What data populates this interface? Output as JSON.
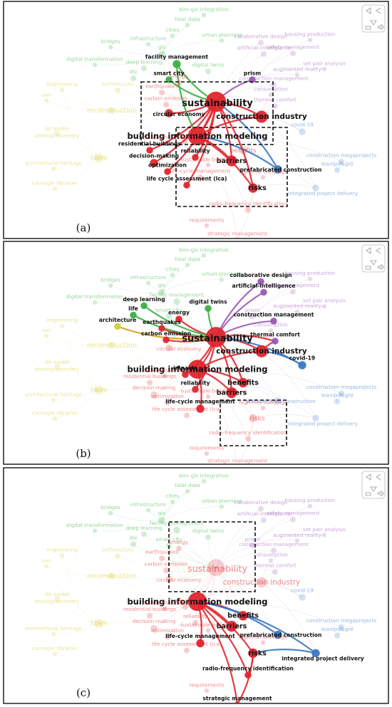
{
  "figure": {
    "panels": [
      {
        "letter": "(a)",
        "highlight": [
          "sustainability",
          "construction industry",
          "circular economy",
          "building information modeling",
          "facility management",
          "smart city",
          "prism",
          "residential buildings",
          "reliability",
          "barriers",
          "decision-making",
          "optimization",
          "life cycle assessment (lca)",
          "risks",
          "prefabricated construction"
        ],
        "edge_colors": {
          "facility management": "#3cb043",
          "smart city": "#3cb043",
          "prism": "#9b59b6",
          "prefabricated construction": "#3a78c4"
        }
      },
      {
        "letter": "(b)",
        "highlight": [
          "sustainability",
          "construction industry",
          "building information modeling",
          "collaborative design",
          "artificial-intelligence",
          "deep learning",
          "life",
          "architecture",
          "digital twins",
          "energy",
          "construction management",
          "thermal comfort",
          "earthquakes",
          "carbon emission",
          "impacts",
          "reliability",
          "barriers",
          "benefits",
          "covid-19",
          "life-cycle management"
        ],
        "edge_colors": {
          "collaborative design": "#9b59b6",
          "artificial-intelligence": "#9b59b6",
          "construction management": "#9b59b6",
          "deep learning": "#3cb043",
          "life": "#3cb043",
          "architecture": "#d4a017",
          "digital twins": "#3cb043",
          "covid-19": "#3a78c4"
        }
      },
      {
        "letter": "(c)",
        "highlight": [
          "building information modeling",
          "benefits",
          "barriers",
          "prefabricated construction",
          "life-cycle management",
          "risks",
          "integrated project delivery",
          "radio-frequency identification",
          "strategic management"
        ],
        "edge_colors": {
          "integrated project delivery": "#3a78c4",
          "prefabricated construction": "#3a78c4"
        }
      }
    ]
  },
  "nodes": [
    {
      "id": "sustainability",
      "label": "sustainability",
      "cluster": "red",
      "size": 15
    },
    {
      "id": "construction industry",
      "label": "construction industry",
      "cluster": "red",
      "size": 9
    },
    {
      "id": "building information modeling",
      "label": "building information modeling",
      "cluster": "red",
      "size": 14
    },
    {
      "id": "circular economy",
      "label": "circular economy",
      "cluster": "red",
      "size": 6
    },
    {
      "id": "barriers",
      "label": "barriers",
      "cluster": "red",
      "size": 8
    },
    {
      "id": "benefits",
      "label": "benefits",
      "cluster": "red",
      "size": 7
    },
    {
      "id": "risks",
      "label": "risks",
      "cluster": "red",
      "size": 7
    },
    {
      "id": "residential buildings",
      "label": "residential buildings",
      "cluster": "red",
      "size": 5
    },
    {
      "id": "reliability",
      "label": "reliability",
      "cluster": "red",
      "size": 5
    },
    {
      "id": "decision-making",
      "label": "decision-making",
      "cluster": "red",
      "size": 6
    },
    {
      "id": "optimization",
      "label": "optimization",
      "cluster": "red",
      "size": 5
    },
    {
      "id": "life cycle assessment (lca)",
      "label": "life cycle assessment (lca)",
      "cluster": "red",
      "size": 5
    },
    {
      "id": "life-cycle management",
      "label": "life-cycle management",
      "cluster": "red",
      "size": 6
    },
    {
      "id": "radio-frequency identification",
      "label": "radio-frequency identification",
      "cluster": "red",
      "size": 5
    },
    {
      "id": "requirements",
      "label": "requirements",
      "cluster": "red",
      "size": 4
    },
    {
      "id": "strategic management",
      "label": "strategic management",
      "cluster": "red",
      "size": 4
    },
    {
      "id": "energy",
      "label": "energy",
      "cluster": "red",
      "size": 5
    },
    {
      "id": "earthquakes",
      "label": "earthquakes",
      "cluster": "red",
      "size": 5
    },
    {
      "id": "carbon emission",
      "label": "carbon emission",
      "cluster": "red",
      "size": 5
    },
    {
      "id": "impacts",
      "label": "impacts",
      "cluster": "red",
      "size": 5
    },
    {
      "id": "cultural heritage",
      "label": "cultural heritage",
      "cluster": "red",
      "size": 4
    },
    {
      "id": "sustainable buildings",
      "label": "sustainable buildings",
      "cluster": "red",
      "size": 4
    },
    {
      "id": "high-rise buildings",
      "label": "high-rise buildings",
      "cluster": "red",
      "size": 4
    },
    {
      "id": "prefabricated construction",
      "label": "prefabricated construction",
      "cluster": "blue",
      "size": 6
    },
    {
      "id": "integrated project delivery",
      "label": "integrated project delivery",
      "cluster": "blue",
      "size": 6
    },
    {
      "id": "construction megaprojects",
      "label": "construction megaprojects",
      "cluster": "blue",
      "size": 5
    },
    {
      "id": "leanipd&gid",
      "label": "leanipd&gid",
      "cluster": "blue",
      "size": 5
    },
    {
      "id": "covid-19",
      "label": "covid-19",
      "cluster": "blue",
      "size": 6
    },
    {
      "id": "smart city",
      "label": "smart city",
      "cluster": "green",
      "size": 5
    },
    {
      "id": "facility management",
      "label": "facility management",
      "cluster": "green",
      "size": 6
    },
    {
      "id": "deep learning",
      "label": "deep learning",
      "cluster": "green",
      "size": 5
    },
    {
      "id": "life",
      "label": "life",
      "cluster": "green",
      "size": 5
    },
    {
      "id": "digital twins",
      "label": "digital twins",
      "cluster": "green",
      "size": 5
    },
    {
      "id": "gis",
      "label": "gis",
      "cluster": "green",
      "size": 6
    },
    {
      "id": "cities",
      "label": "cities",
      "cluster": "green",
      "size": 4
    },
    {
      "id": "infrastructure",
      "label": "infrastructure",
      "cluster": "green",
      "size": 4
    },
    {
      "id": "urban planning",
      "label": "urban planning",
      "cluster": "green",
      "size": 4
    },
    {
      "id": "bim-gis integration",
      "label": "bim-gis integration",
      "cluster": "green",
      "size": 4
    },
    {
      "id": "lidar data",
      "label": "lidar data",
      "cluster": "green",
      "size": 4
    },
    {
      "id": "bridges",
      "label": "bridges",
      "cluster": "green",
      "size": 4
    },
    {
      "id": "digital transformation",
      "label": "digital transformation",
      "cluster": "green",
      "size": 4
    },
    {
      "id": "architecture",
      "label": "architecture",
      "cluster": "yellow",
      "size": 5
    },
    {
      "id": "reconstruction",
      "label": "reconstruction",
      "cluster": "yellow",
      "size": 6
    },
    {
      "id": "hbim",
      "label": "hbim",
      "cluster": "yellow",
      "size": 8
    },
    {
      "id": "engineering",
      "label": "engineering",
      "cluster": "yellow",
      "size": 4
    },
    {
      "id": "uav",
      "label": "uav",
      "cluster": "yellow",
      "size": 4
    },
    {
      "id": "3d model photogrammetry",
      "label": "3d model photogrammetry",
      "cluster": "yellow",
      "size": 5
    },
    {
      "id": "architectural heritage",
      "label": "architectural heritage",
      "cluster": "yellow",
      "size": 4
    },
    {
      "id": "carnegie libraries",
      "label": "carnegie libraries",
      "cluster": "yellow",
      "size": 4
    },
    {
      "id": "prism",
      "label": "prism",
      "cluster": "purple",
      "size": 5
    },
    {
      "id": "collaborative design",
      "label": "collaborative design",
      "cluster": "purple",
      "size": 5
    },
    {
      "id": "artificial-intelligence",
      "label": "artificial-intelligence",
      "cluster": "purple",
      "size": 5
    },
    {
      "id": "construction management",
      "label": "construction management",
      "cluster": "purple",
      "size": 5
    },
    {
      "id": "thermal comfort",
      "label": "thermal comfort",
      "cluster": "purple",
      "size": 5
    },
    {
      "id": "consumption",
      "label": "consumption",
      "cluster": "purple",
      "size": 4
    },
    {
      "id": "augmented reality",
      "label": "augmented reality",
      "cluster": "purple",
      "size": 4
    },
    {
      "id": "safety management",
      "label": "safety management",
      "cluster": "purple",
      "size": 5
    },
    {
      "id": "housing production",
      "label": "housing production",
      "cluster": "purple",
      "size": 4
    },
    {
      "id": "set pair analysis",
      "label": "set pair analysis",
      "cluster": "purple",
      "size": 4
    }
  ],
  "colors": {
    "red": "#e0262e",
    "green": "#3cb043",
    "blue": "#3a78c4",
    "yellow": "#d4cf3a",
    "purple": "#9b59b6",
    "faded_edge": "#f3b8bb",
    "dashed_box": "#111111"
  }
}
